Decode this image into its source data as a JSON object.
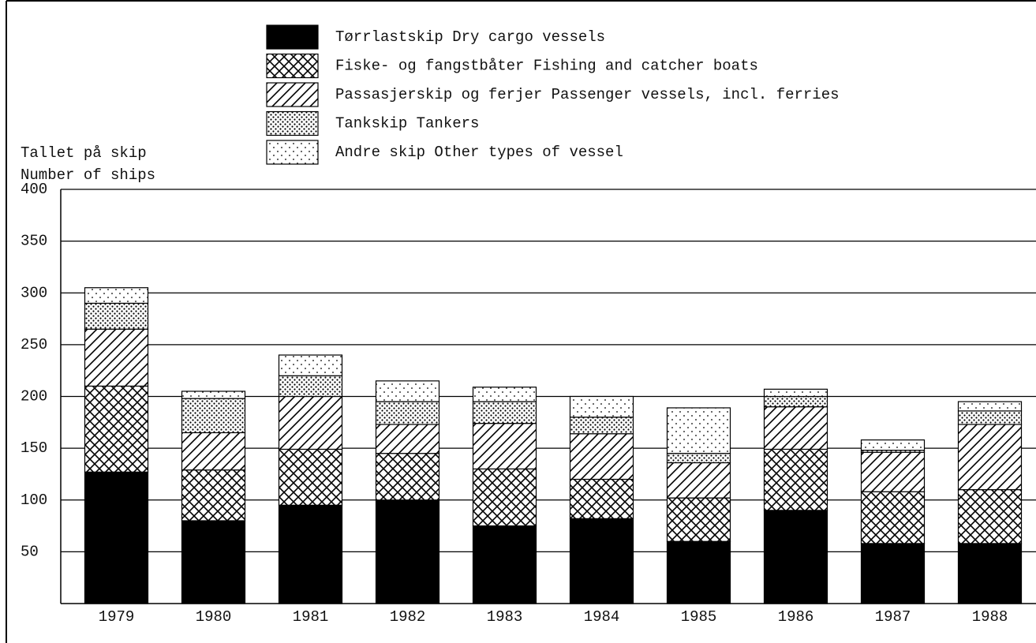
{
  "chart_data": {
    "type": "stacked-bar",
    "y_label_lines": [
      "Tallet på skip",
      "Number of ships"
    ],
    "categories": [
      "1979",
      "1980",
      "1981",
      "1982",
      "1983",
      "1984",
      "1985",
      "1986",
      "1987",
      "1988"
    ],
    "series": [
      {
        "name": "Tørrlastskip  Dry cargo vessels",
        "color": "#000000",
        "pattern": "solid",
        "values": [
          127,
          80,
          95,
          100,
          75,
          82,
          60,
          90,
          58,
          58
        ]
      },
      {
        "name": "Fiske- og fangstbåter  Fishing and catcher boats",
        "color": "#000000",
        "pattern": "crosshatch",
        "values": [
          83,
          49,
          54,
          45,
          55,
          38,
          42,
          59,
          50,
          52
        ]
      },
      {
        "name": "Passasjerskip og ferjer  Passenger vessels, incl. ferries",
        "color": "#000000",
        "pattern": "hatch",
        "values": [
          55,
          36,
          51,
          28,
          44,
          44,
          34,
          41,
          38,
          63
        ]
      },
      {
        "name": "Tankskip  Tankers",
        "color": "#000000",
        "pattern": "dots-dense",
        "values": [
          25,
          33,
          20,
          22,
          21,
          16,
          9,
          10,
          2,
          13
        ]
      },
      {
        "name": "Andre skip  Other types of vessel",
        "color": "#000000",
        "pattern": "dots-sparse",
        "values": [
          15,
          7,
          20,
          20,
          14,
          20,
          44,
          7,
          10,
          9
        ]
      }
    ],
    "ylim": [
      0,
      400
    ],
    "yticks": [
      50,
      100,
      150,
      200,
      250,
      300,
      350,
      400
    ],
    "grid": true
  }
}
